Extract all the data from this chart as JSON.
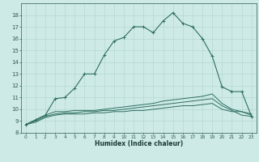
{
  "title": "",
  "xlabel": "Humidex (Indice chaleur)",
  "xlim": [
    -0.5,
    23.5
  ],
  "ylim": [
    8,
    19
  ],
  "xticks": [
    0,
    1,
    2,
    3,
    4,
    5,
    6,
    7,
    8,
    9,
    10,
    11,
    12,
    13,
    14,
    15,
    16,
    17,
    18,
    19,
    20,
    21,
    22,
    23
  ],
  "yticks": [
    8,
    9,
    10,
    11,
    12,
    13,
    14,
    15,
    16,
    17,
    18
  ],
  "bg_color": "#ceeae6",
  "line_color": "#2e6e62",
  "grid_color": "#aed4ce",
  "line1_x": [
    0,
    1,
    2,
    3,
    4,
    5,
    6,
    7,
    8,
    9,
    10,
    11,
    12,
    13,
    14,
    15,
    16,
    17,
    18,
    19,
    20,
    21,
    22,
    23
  ],
  "line1_y": [
    8.7,
    9.1,
    9.5,
    10.9,
    11.0,
    11.8,
    13.0,
    13.0,
    14.6,
    15.8,
    16.1,
    17.0,
    17.0,
    16.5,
    17.5,
    18.2,
    17.3,
    17.0,
    16.0,
    14.5,
    11.9,
    11.5,
    11.5,
    9.4
  ],
  "line2_x": [
    0,
    1,
    2,
    3,
    4,
    5,
    6,
    7,
    8,
    9,
    10,
    11,
    12,
    13,
    14,
    15,
    16,
    17,
    18,
    19,
    20,
    21,
    22,
    23
  ],
  "line2_y": [
    8.7,
    9.1,
    9.5,
    9.8,
    9.8,
    9.9,
    9.9,
    9.9,
    10.0,
    10.1,
    10.2,
    10.3,
    10.4,
    10.5,
    10.7,
    10.8,
    10.9,
    11.0,
    11.1,
    11.3,
    10.5,
    10.0,
    9.8,
    9.5
  ],
  "line3_x": [
    0,
    1,
    2,
    3,
    4,
    5,
    6,
    7,
    8,
    9,
    10,
    11,
    12,
    13,
    14,
    15,
    16,
    17,
    18,
    19,
    20,
    21,
    22,
    23
  ],
  "line3_y": [
    8.7,
    9.0,
    9.4,
    9.6,
    9.7,
    9.7,
    9.8,
    9.8,
    9.9,
    9.9,
    10.0,
    10.1,
    10.2,
    10.3,
    10.4,
    10.5,
    10.6,
    10.7,
    10.8,
    10.9,
    10.3,
    9.9,
    9.5,
    9.4
  ],
  "line4_x": [
    0,
    1,
    2,
    3,
    4,
    5,
    6,
    7,
    8,
    9,
    10,
    11,
    12,
    13,
    14,
    15,
    16,
    17,
    18,
    19,
    20,
    21,
    22,
    23
  ],
  "line4_y": [
    8.7,
    8.9,
    9.3,
    9.5,
    9.6,
    9.6,
    9.6,
    9.7,
    9.7,
    9.8,
    9.8,
    9.9,
    9.9,
    10.0,
    10.1,
    10.2,
    10.3,
    10.3,
    10.4,
    10.5,
    10.0,
    9.8,
    9.8,
    9.6
  ]
}
